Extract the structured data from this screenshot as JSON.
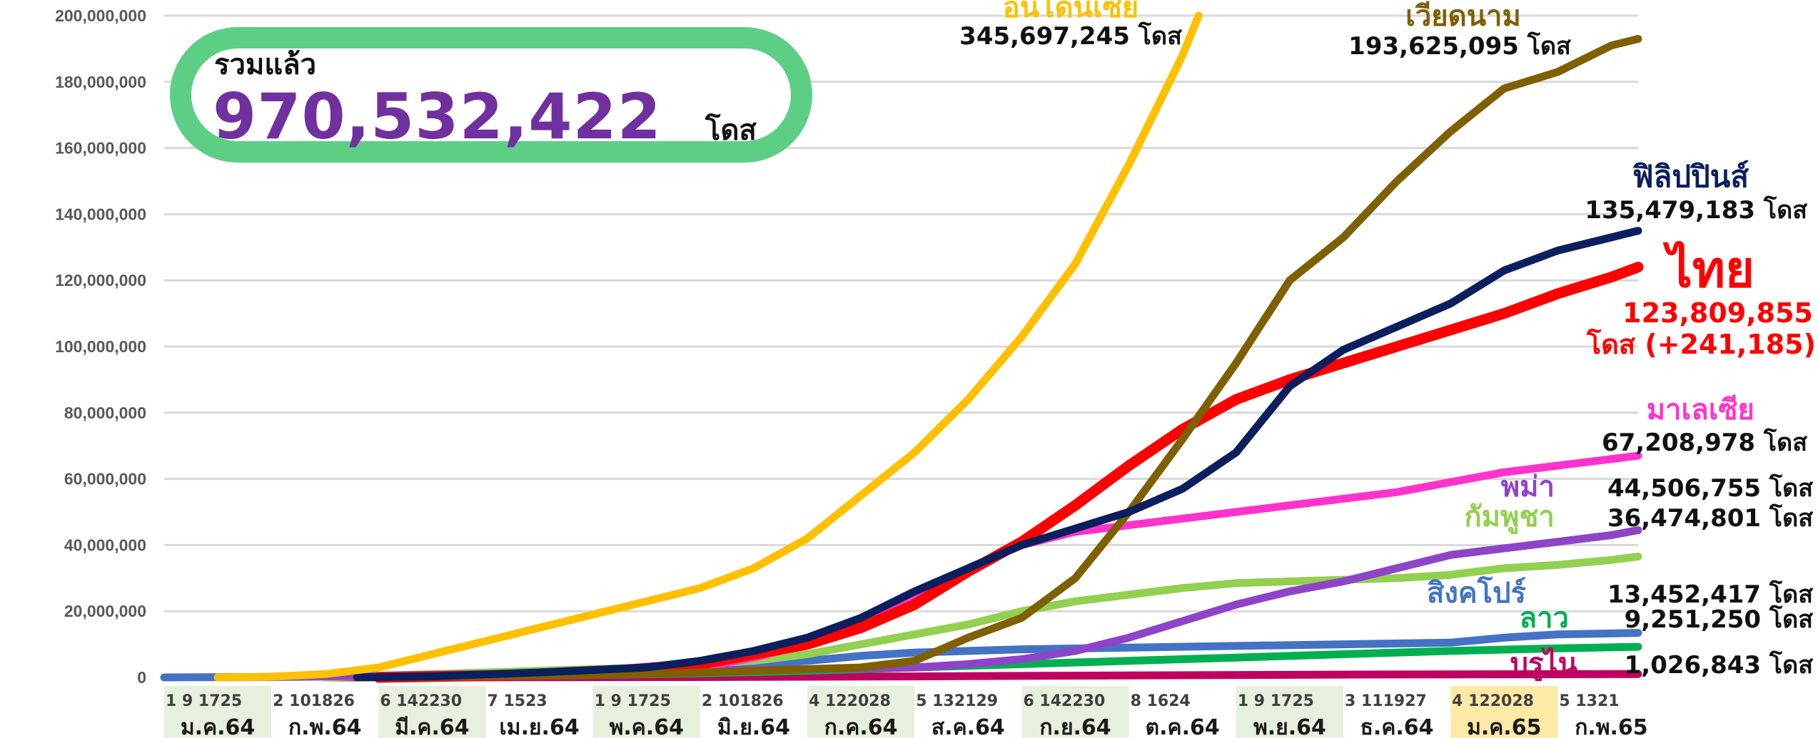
{
  "summary": {
    "title": "รวมแล้ว",
    "value": "970,532,422",
    "unit": "โดส"
  },
  "colors": {
    "indonesia": "#ffc000",
    "vietnam": "#7f6000",
    "philippines": "#0b1f5e",
    "thailand": "#ff0000",
    "malaysia": "#ff33cc",
    "myanmar": "#8e44c8",
    "cambodia": "#92d050",
    "singapore": "#4472c4",
    "laos": "#00b050",
    "brunei": "#c00060",
    "summary_border": "#5ccf85",
    "summary_value": "#7030a0"
  },
  "chart_data": {
    "type": "line",
    "ylim": [
      0,
      200000000
    ],
    "yticks": [
      "0",
      "20,000,000",
      "40,000,000",
      "60,000,000",
      "80,000,000",
      "100,000,000",
      "120,000,000",
      "140,000,000",
      "160,000,000",
      "180,000,000",
      "200,000,000"
    ],
    "ytick_values": [
      0,
      20000000,
      40000000,
      60000000,
      80000000,
      100000000,
      120000000,
      140000000,
      160000000,
      180000000,
      200000000
    ],
    "x_range": [
      0,
      13.75
    ],
    "months": [
      {
        "days": "1  9 1725",
        "label": "ม.ค.64"
      },
      {
        "days": "2 101826",
        "label": "ก.พ.64"
      },
      {
        "days": "6 142230",
        "label": "มี.ค.64"
      },
      {
        "days": "7 1523",
        "label": "เม.ย.64"
      },
      {
        "days": "1  9 1725",
        "label": "พ.ค.64"
      },
      {
        "days": "2 101826",
        "label": "มิ.ย.64"
      },
      {
        "days": "4 122028",
        "label": "ก.ค.64"
      },
      {
        "days": "5 132129",
        "label": "ส.ค.64"
      },
      {
        "days": "6 142230",
        "label": "ก.ย.64"
      },
      {
        "days": "8 1624",
        "label": "ต.ค.64"
      },
      {
        "days": "1  9 1725",
        "label": "พ.ย.64"
      },
      {
        "days": "3 111927",
        "label": "ธ.ค.64"
      },
      {
        "days": "4 122028",
        "label": "ม.ค.65"
      },
      {
        "days": "5 1321",
        "label": "ก.พ.65"
      }
    ],
    "series": [
      {
        "name": "อินโดนีเซีย",
        "value_label": "345,697,245 โดส",
        "color": "#ffc000",
        "x": [
          0.5,
          1.0,
          1.5,
          2.0,
          2.5,
          3.0,
          3.5,
          4.0,
          4.5,
          5.0,
          5.5,
          6.0,
          6.5,
          7.0,
          7.5,
          8.0,
          8.5,
          9.0,
          9.5,
          9.65
        ],
        "y": [
          0,
          200000,
          1000000,
          3000000,
          7000000,
          11000000,
          15000000,
          19000000,
          23000000,
          27000000,
          33000000,
          42000000,
          55000000,
          68000000,
          84000000,
          103000000,
          125000000,
          155000000,
          188000000,
          200000000
        ]
      },
      {
        "name": "เวียดนาม",
        "value_label": "193,625,095 โดส",
        "color": "#7f6000",
        "x": [
          1.8,
          2.5,
          3.5,
          4.5,
          5.5,
          6.5,
          7.0,
          7.5,
          8.0,
          8.5,
          9.0,
          9.5,
          10.0,
          10.5,
          11.0,
          11.5,
          12.0,
          12.5,
          13.0,
          13.5,
          13.75
        ],
        "y": [
          0,
          200000,
          500000,
          1000000,
          2000000,
          3000000,
          5000000,
          12000000,
          18000000,
          30000000,
          50000000,
          72000000,
          95000000,
          120000000,
          133000000,
          150000000,
          165000000,
          178000000,
          183000000,
          191000000,
          193000000
        ]
      },
      {
        "name": "ฟิลิปปินส์",
        "value_label": "135,479,183 โดส",
        "color": "#0b1f5e",
        "x": [
          1.8,
          2.5,
          3.5,
          4.5,
          5.0,
          5.5,
          6.0,
          6.5,
          7.0,
          7.5,
          8.0,
          8.5,
          9.0,
          9.5,
          10.0,
          10.5,
          11.0,
          11.5,
          12.0,
          12.5,
          13.0,
          13.5,
          13.75
        ],
        "y": [
          0,
          300000,
          1500000,
          3000000,
          5000000,
          8000000,
          12000000,
          18000000,
          26000000,
          33000000,
          40000000,
          45000000,
          50000000,
          57000000,
          68000000,
          88000000,
          99000000,
          106000000,
          113000000,
          123000000,
          129000000,
          133000000,
          135000000
        ]
      },
      {
        "name": "ไทย",
        "value_label": "123,809,855",
        "extra_label": "โดส (+241,185)",
        "color": "#ff0000",
        "x": [
          2.0,
          3.0,
          4.0,
          5.0,
          5.5,
          6.0,
          6.5,
          7.0,
          7.5,
          8.0,
          8.5,
          9.0,
          9.5,
          10.0,
          10.5,
          11.0,
          11.5,
          12.0,
          12.5,
          13.0,
          13.5,
          13.75
        ],
        "y": [
          0,
          500000,
          1500000,
          4000000,
          7000000,
          10000000,
          15000000,
          22000000,
          32000000,
          41000000,
          52000000,
          64000000,
          75000000,
          84000000,
          90000000,
          95000000,
          100000000,
          105000000,
          110000000,
          116000000,
          121000000,
          124000000
        ]
      },
      {
        "name": "มาเลเซีย",
        "value_label": "67,208,978 โดส",
        "color": "#ff33cc",
        "x": [
          2.0,
          3.0,
          4.0,
          5.0,
          5.5,
          6.0,
          6.5,
          7.0,
          7.5,
          8.0,
          8.5,
          9.0,
          9.5,
          10.0,
          10.5,
          11.0,
          11.5,
          12.0,
          12.5,
          13.0,
          13.5,
          13.75
        ],
        "y": [
          0,
          500000,
          1000000,
          3000000,
          6000000,
          10000000,
          16000000,
          25000000,
          33000000,
          40000000,
          44000000,
          46000000,
          48000000,
          50000000,
          52000000,
          54000000,
          56000000,
          59000000,
          62000000,
          64000000,
          66000000,
          67000000
        ]
      },
      {
        "name": "พม่า",
        "value_label": "44,506,755 โดส",
        "color": "#8e44c8",
        "x": [
          0.5,
          2.0,
          4.0,
          6.0,
          7.0,
          7.5,
          8.0,
          8.5,
          9.0,
          9.5,
          10.0,
          10.5,
          11.0,
          11.5,
          12.0,
          12.5,
          13.0,
          13.5,
          13.75
        ],
        "y": [
          0,
          500000,
          1500000,
          2500000,
          3000000,
          4000000,
          5500000,
          8000000,
          12000000,
          17000000,
          22000000,
          26000000,
          29000000,
          33000000,
          37000000,
          39000000,
          41000000,
          43000000,
          44500000
        ]
      },
      {
        "name": "กัมพูชา",
        "value_label": "36,474,801 โดส",
        "color": "#92d050",
        "x": [
          1.5,
          2.5,
          3.5,
          4.5,
          5.5,
          6.0,
          6.5,
          7.0,
          7.5,
          8.0,
          8.5,
          9.0,
          9.5,
          10.0,
          10.5,
          11.0,
          11.5,
          12.0,
          12.5,
          13.0,
          13.5,
          13.75
        ],
        "y": [
          0,
          1000000,
          2000000,
          3000000,
          5000000,
          7000000,
          10000000,
          13000000,
          16000000,
          20000000,
          23000000,
          25000000,
          27000000,
          28500000,
          29000000,
          29500000,
          30000000,
          31000000,
          33000000,
          34000000,
          35500000,
          36500000
        ]
      },
      {
        "name": "สิงคโปร์",
        "value_label": "13,452,417 โดส",
        "color": "#4472c4",
        "x": [
          0,
          1.0,
          2.0,
          3.0,
          4.0,
          5.0,
          6.0,
          6.5,
          7.0,
          7.5,
          8.0,
          9.0,
          10.0,
          11.0,
          12.0,
          12.5,
          13.0,
          13.75
        ],
        "y": [
          0,
          100000,
          400000,
          900000,
          1700000,
          3000000,
          5000000,
          6500000,
          7500000,
          8000000,
          8500000,
          9000000,
          9500000,
          10000000,
          10500000,
          12000000,
          13000000,
          13450000
        ]
      },
      {
        "name": "ลาว",
        "value_label": "9,251,250 โดส",
        "color": "#00b050",
        "x": [
          2.0,
          3.0,
          4.0,
          5.0,
          6.0,
          7.0,
          8.0,
          9.0,
          10.0,
          11.0,
          12.0,
          13.0,
          13.75
        ],
        "y": [
          0,
          300000,
          700000,
          1200000,
          2000000,
          3000000,
          4000000,
          5000000,
          6000000,
          7000000,
          8000000,
          8800000,
          9250000
        ]
      },
      {
        "name": "บรูไน",
        "value_label": "1,026,843 โดส",
        "color": "#c00060",
        "x": [
          1.5,
          3.0,
          5.0,
          7.0,
          9.0,
          11.0,
          13.0,
          13.75
        ],
        "y": [
          0,
          20000,
          100000,
          300000,
          600000,
          850000,
          980000,
          1026843
        ]
      }
    ]
  }
}
